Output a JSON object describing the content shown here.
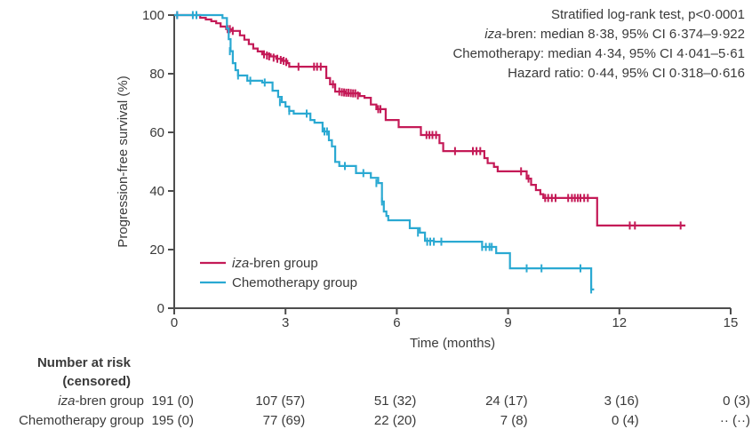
{
  "chart_data": {
    "type": "line",
    "subtype": "kaplan-meier-step",
    "title": "",
    "xlabel": "Time (months)",
    "ylabel": "Progression-free survival (%)",
    "xlim": [
      0,
      15
    ],
    "ylim": [
      0,
      100
    ],
    "x_ticks": [
      0,
      3,
      6,
      9,
      12,
      15
    ],
    "y_ticks": [
      0,
      20,
      40,
      60,
      80,
      100
    ],
    "grid": false,
    "legend_position": "inside lower-left",
    "annotations": [
      {
        "italic": "",
        "rest": "Stratified log-rank test, p<0·0001"
      },
      {
        "italic": "iza",
        "rest": "-bren: median 8·38, 95% CI 6·374–9·922"
      },
      {
        "italic": "",
        "rest": "Chemotherapy: median 4·34, 95% CI 4·041–5·61"
      },
      {
        "italic": "",
        "rest": "Hazard ratio: 0·44, 95% CI 0·318–0·616"
      }
    ],
    "series": [
      {
        "name": "iza-bren group",
        "legend_italic": "iza",
        "legend_rest": "-bren group",
        "color": "#c41a57",
        "steps": [
          [
            0,
            100
          ],
          [
            0.7,
            99.1
          ],
          [
            0.85,
            98.5
          ],
          [
            1.0,
            97.9
          ],
          [
            1.13,
            97.2
          ],
          [
            1.25,
            96.1
          ],
          [
            1.4,
            95.2
          ],
          [
            1.55,
            94.6
          ],
          [
            1.77,
            93.1
          ],
          [
            1.89,
            91.6
          ],
          [
            2.01,
            90.1
          ],
          [
            2.13,
            88.6
          ],
          [
            2.25,
            87.6
          ],
          [
            2.37,
            86.6
          ],
          [
            2.6,
            85.9
          ],
          [
            2.75,
            85.1
          ],
          [
            2.9,
            84.4
          ],
          [
            3.05,
            83.6
          ],
          [
            3.1,
            82.4
          ],
          [
            4.1,
            78.5
          ],
          [
            4.2,
            76.4
          ],
          [
            4.34,
            73.9
          ],
          [
            4.6,
            73.3
          ],
          [
            5.0,
            72.4
          ],
          [
            5.13,
            71.8
          ],
          [
            5.3,
            69.5
          ],
          [
            5.45,
            67.9
          ],
          [
            5.7,
            64.2
          ],
          [
            6.05,
            61.8
          ],
          [
            6.65,
            59.1
          ],
          [
            7.15,
            56.3
          ],
          [
            7.25,
            53.6
          ],
          [
            8.36,
            51.2
          ],
          [
            8.45,
            49.5
          ],
          [
            8.62,
            48.2
          ],
          [
            8.72,
            46.7
          ],
          [
            9.5,
            44.2
          ],
          [
            9.62,
            42.1
          ],
          [
            9.75,
            40.3
          ],
          [
            9.87,
            38.9
          ],
          [
            9.95,
            37.6
          ],
          [
            11.4,
            28.2
          ],
          [
            13.78,
            28.2
          ]
        ],
        "censors": [
          [
            0.08,
            100
          ],
          [
            1.44,
            95.2
          ],
          [
            1.5,
            95.2
          ],
          [
            1.58,
            94.6
          ],
          [
            2.42,
            86.6
          ],
          [
            2.5,
            86.2
          ],
          [
            2.56,
            85.9
          ],
          [
            2.68,
            85.5
          ],
          [
            2.78,
            85.1
          ],
          [
            2.87,
            84.7
          ],
          [
            2.95,
            84.4
          ],
          [
            3.02,
            84.0
          ],
          [
            3.35,
            82.4
          ],
          [
            3.77,
            82.4
          ],
          [
            3.85,
            82.4
          ],
          [
            3.95,
            82.4
          ],
          [
            4.28,
            76.4
          ],
          [
            4.45,
            73.9
          ],
          [
            4.52,
            73.7
          ],
          [
            4.58,
            73.6
          ],
          [
            4.64,
            73.5
          ],
          [
            4.7,
            73.5
          ],
          [
            4.76,
            73.4
          ],
          [
            4.82,
            73.3
          ],
          [
            4.88,
            73.3
          ],
          [
            4.95,
            72.6
          ],
          [
            5.5,
            67.9
          ],
          [
            5.56,
            67.9
          ],
          [
            6.8,
            59.1
          ],
          [
            6.88,
            59.1
          ],
          [
            6.96,
            59.1
          ],
          [
            7.06,
            59.1
          ],
          [
            7.57,
            53.6
          ],
          [
            8.05,
            53.6
          ],
          [
            8.15,
            53.6
          ],
          [
            8.25,
            53.6
          ],
          [
            9.35,
            46.7
          ],
          [
            9.55,
            44.2
          ],
          [
            10.0,
            37.6
          ],
          [
            10.08,
            37.6
          ],
          [
            10.18,
            37.6
          ],
          [
            10.28,
            37.6
          ],
          [
            10.62,
            37.6
          ],
          [
            10.72,
            37.6
          ],
          [
            10.8,
            37.6
          ],
          [
            10.88,
            37.6
          ],
          [
            10.95,
            37.6
          ],
          [
            11.05,
            37.6
          ],
          [
            11.15,
            37.6
          ],
          [
            12.28,
            28.2
          ],
          [
            12.42,
            28.2
          ],
          [
            13.65,
            28.2
          ]
        ]
      },
      {
        "name": "Chemotherapy group",
        "legend_italic": "",
        "legend_rest": "Chemotherapy group",
        "color": "#2aa9d2",
        "steps": [
          [
            0,
            100
          ],
          [
            1.3,
            99.0
          ],
          [
            1.42,
            95.4
          ],
          [
            1.47,
            91.8
          ],
          [
            1.52,
            87.7
          ],
          [
            1.58,
            83.6
          ],
          [
            1.65,
            81.2
          ],
          [
            1.72,
            79.4
          ],
          [
            1.97,
            77.6
          ],
          [
            2.37,
            77.0
          ],
          [
            2.65,
            74.2
          ],
          [
            2.8,
            72.1
          ],
          [
            2.9,
            70.3
          ],
          [
            3.0,
            68.8
          ],
          [
            3.1,
            67.3
          ],
          [
            3.22,
            66.4
          ],
          [
            3.67,
            64.2
          ],
          [
            3.78,
            63.3
          ],
          [
            4.0,
            60.3
          ],
          [
            4.17,
            57.3
          ],
          [
            4.25,
            55.2
          ],
          [
            4.34,
            49.9
          ],
          [
            4.45,
            48.5
          ],
          [
            4.9,
            46.1
          ],
          [
            5.3,
            44.5
          ],
          [
            5.5,
            42.7
          ],
          [
            5.6,
            36.4
          ],
          [
            5.65,
            33.0
          ],
          [
            5.72,
            31.5
          ],
          [
            5.77,
            30.0
          ],
          [
            6.35,
            27.3
          ],
          [
            6.62,
            25.8
          ],
          [
            6.76,
            23.0
          ],
          [
            7.0,
            22.7
          ],
          [
            8.3,
            20.9
          ],
          [
            8.68,
            18.8
          ],
          [
            9.05,
            13.6
          ],
          [
            11.24,
            6.4
          ],
          [
            11.32,
            6.4
          ]
        ],
        "censors": [
          [
            0.08,
            100
          ],
          [
            0.5,
            100
          ],
          [
            0.6,
            100
          ],
          [
            1.5,
            87.7
          ],
          [
            1.72,
            79.4
          ],
          [
            2.05,
            77.6
          ],
          [
            2.44,
            77.0
          ],
          [
            2.85,
            70.3
          ],
          [
            3.1,
            67.3
          ],
          [
            3.57,
            66.4
          ],
          [
            4.05,
            60.3
          ],
          [
            4.12,
            60.3
          ],
          [
            4.6,
            48.5
          ],
          [
            5.1,
            46.1
          ],
          [
            5.45,
            42.7
          ],
          [
            5.6,
            36.4
          ],
          [
            6.57,
            25.8
          ],
          [
            6.82,
            22.7
          ],
          [
            6.9,
            22.7
          ],
          [
            7.0,
            22.7
          ],
          [
            7.2,
            22.7
          ],
          [
            8.3,
            20.9
          ],
          [
            8.4,
            20.9
          ],
          [
            8.5,
            20.9
          ],
          [
            8.56,
            20.9
          ],
          [
            9.5,
            13.6
          ],
          [
            9.9,
            13.6
          ],
          [
            10.95,
            13.6
          ],
          [
            11.24,
            6.4
          ]
        ]
      }
    ]
  },
  "legend": {
    "items": [
      {
        "italic": "iza",
        "rest": "-bren group"
      },
      {
        "italic": "",
        "rest": "Chemotherapy group"
      }
    ]
  },
  "risk_table": {
    "header_line1": "Number at risk",
    "header_line2": "(censored)",
    "time_points": [
      0,
      3,
      6,
      9,
      12,
      15
    ],
    "rows": [
      {
        "italic": "iza",
        "label": "-bren group",
        "values": [
          "191 (0)",
          "107 (57)",
          "51 (32)",
          "24 (17)",
          "3 (16)",
          "0 (3)"
        ]
      },
      {
        "italic": "",
        "label": "Chemotherapy group",
        "values": [
          "195 (0)",
          "77 (69)",
          "22 (20)",
          "7 (8)",
          "0 (4)",
          "·· (··)"
        ]
      }
    ]
  },
  "colors": {
    "iza_bren": "#c41a57",
    "chemotherapy": "#2aa9d2",
    "axis": "#4d4d4d",
    "text": "#3a3a3a"
  }
}
